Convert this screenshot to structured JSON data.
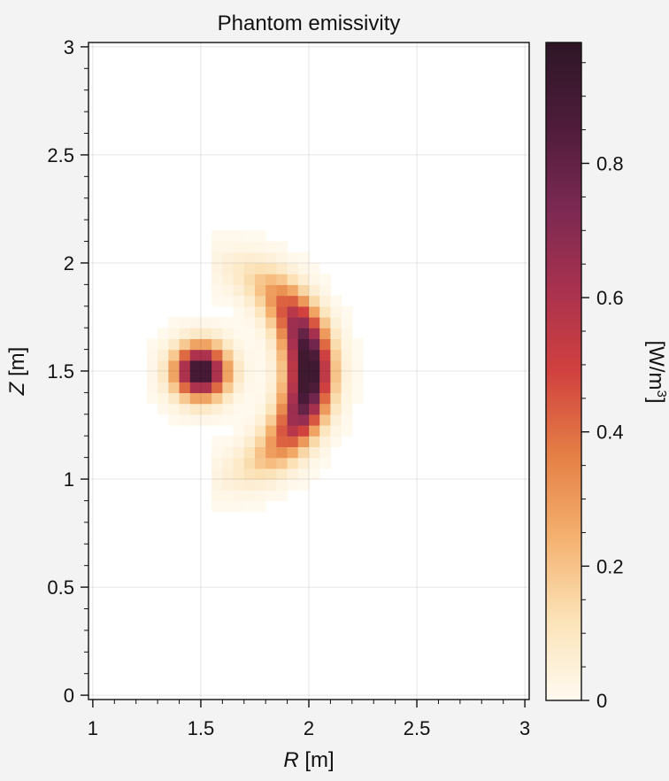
{
  "chart_data": {
    "type": "heatmap",
    "title": "Phantom emissivity",
    "xlabel": {
      "var": "R",
      "unit": " [m]"
    },
    "ylabel": {
      "var": "Z",
      "unit": " [m]"
    },
    "xlim": [
      0.98,
      3.02
    ],
    "ylim": [
      -0.02,
      3.02
    ],
    "xticks": [
      1,
      1.5,
      2,
      2.5,
      3
    ],
    "xtick_labels": [
      "1",
      "1.5",
      "2",
      "2.5",
      "3"
    ],
    "yticks": [
      0,
      0.5,
      1,
      1.5,
      2,
      2.5,
      3
    ],
    "ytick_labels": [
      "0",
      "0.5",
      "1",
      "1.5",
      "2",
      "2.5",
      "3"
    ],
    "grid": true,
    "colorbar": {
      "label_main": "[W/m",
      "label_sup": "3",
      "label_end": "]",
      "vmin": 0,
      "vmax": 0.98,
      "ticks": [
        0,
        0.2,
        0.4,
        0.6,
        0.8
      ],
      "tick_labels": [
        "0",
        "0.2",
        "0.4",
        "0.6",
        "0.8"
      ],
      "colormap": [
        "#fffaf0",
        "#fbe2b6",
        "#f4b06e",
        "#e47e45",
        "#d1413f",
        "#a8314f",
        "#7a2952",
        "#4e1c3a",
        "#2d1626"
      ]
    },
    "grid_spec": {
      "r_start": 1.0,
      "r_step": 0.05,
      "nr": 40,
      "z_start": 0.0,
      "z_step": 0.05,
      "nz": 60
    },
    "features": [
      {
        "name": "blob",
        "center_R": 1.5,
        "center_Z": 1.5,
        "radius": 0.2,
        "peak": 0.98
      },
      {
        "name": "arc",
        "center_R": 1.5,
        "center_Z": 1.5,
        "arc_radius": 0.5,
        "width": 0.07,
        "peak": 0.98
      }
    ]
  }
}
